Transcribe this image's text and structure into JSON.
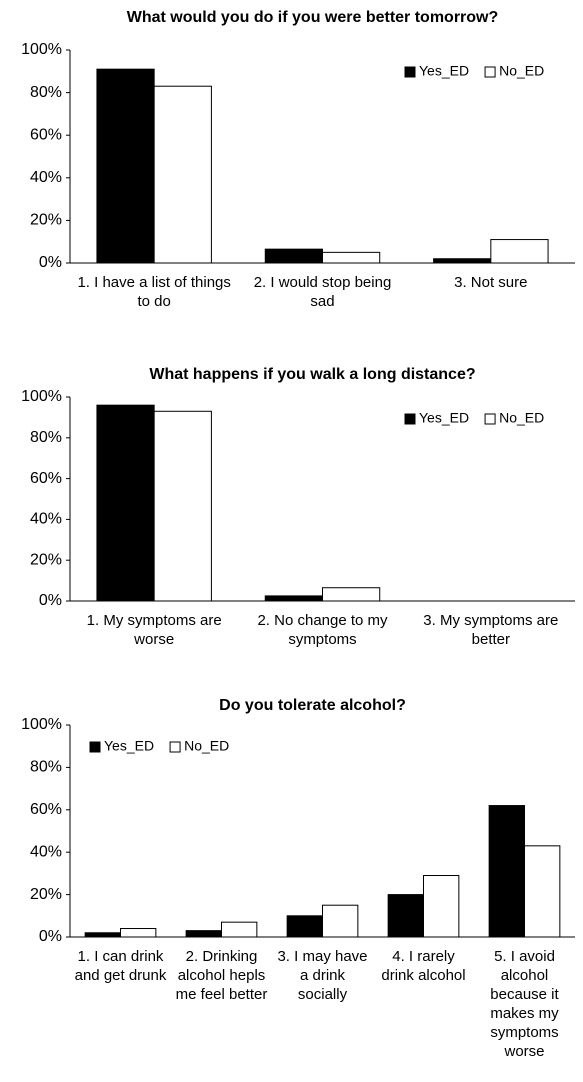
{
  "chart_data": [
    {
      "type": "bar",
      "title": "What would you do if you were better tomorrow?",
      "categories": [
        "1. I have a list of things to do",
        "2. I would stop being sad",
        "3. Not sure"
      ],
      "series": [
        {
          "name": "Yes_ED",
          "color": "#000000",
          "values": [
            91,
            6.5,
            2
          ]
        },
        {
          "name": "No_ED",
          "color": "#ffffff",
          "values": [
            83,
            5,
            11
          ]
        }
      ],
      "ylim": [
        0,
        100
      ],
      "yticks": [
        {
          "value": 0,
          "label": "0%"
        },
        {
          "value": 20,
          "label": "20%"
        },
        {
          "value": 40,
          "label": "40%"
        },
        {
          "value": 60,
          "label": "60%"
        },
        {
          "value": 80,
          "label": "80%"
        },
        {
          "value": 100,
          "label": "100%"
        }
      ],
      "legend": "upper right"
    },
    {
      "type": "bar",
      "title": "What happens if you walk a long distance?",
      "categories": [
        "1. My symptoms are worse",
        "2. No change to my symptoms",
        "3. My symptoms are better"
      ],
      "series": [
        {
          "name": "Yes_ED",
          "color": "#000000",
          "values": [
            96,
            2.5,
            0
          ]
        },
        {
          "name": "No_ED",
          "color": "#ffffff",
          "values": [
            93,
            6.5,
            0
          ]
        }
      ],
      "ylim": [
        0,
        100
      ],
      "yticks": [
        {
          "value": 0,
          "label": "0%"
        },
        {
          "value": 20,
          "label": "20%"
        },
        {
          "value": 40,
          "label": "40%"
        },
        {
          "value": 60,
          "label": "60%"
        },
        {
          "value": 80,
          "label": "80%"
        },
        {
          "value": 100,
          "label": "100%"
        }
      ],
      "legend": "upper right"
    },
    {
      "type": "bar",
      "title": "Do you tolerate alcohol?",
      "categories": [
        "1. I can drink and get drunk",
        "2. Drinking alcohol hepls me feel better",
        "3. I may have a drink socially",
        "4. I rarely drink alcohol",
        "5. I avoid alcohol because it makes my symptoms worse"
      ],
      "series": [
        {
          "name": "Yes_ED",
          "color": "#000000",
          "values": [
            2,
            3,
            10,
            20,
            62
          ]
        },
        {
          "name": "No_ED",
          "color": "#ffffff",
          "values": [
            4,
            7,
            15,
            29,
            43
          ]
        }
      ],
      "ylim": [
        0,
        100
      ],
      "yticks": [
        {
          "value": 0,
          "label": "0%"
        },
        {
          "value": 20,
          "label": "20%"
        },
        {
          "value": 40,
          "label": "40%"
        },
        {
          "value": 60,
          "label": "60%"
        },
        {
          "value": 80,
          "label": "80%"
        },
        {
          "value": 100,
          "label": "100%"
        }
      ],
      "legend": "upper left"
    }
  ]
}
